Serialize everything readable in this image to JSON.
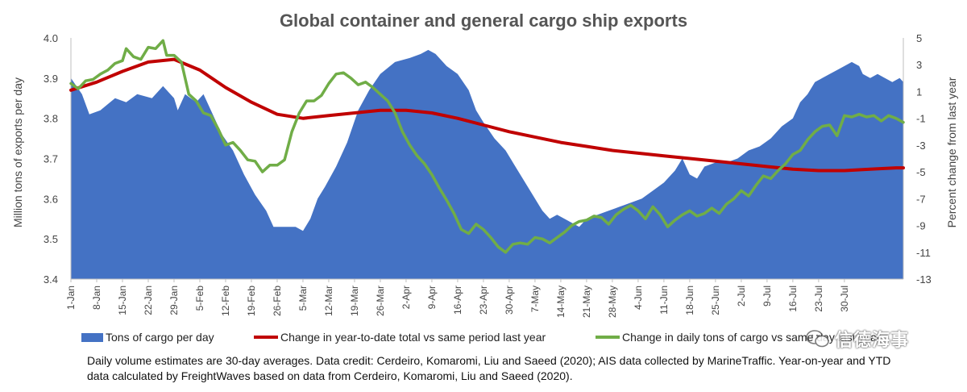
{
  "chart_data": {
    "type": "area",
    "title": "Global container and general cargo ship exports",
    "ylabel_left": "Million tons of exports per day",
    "ylabel_right": "Percent change from last year",
    "y_left_range": [
      3.4,
      4.0
    ],
    "y_left_ticks": [
      "3.4",
      "3.5",
      "3.6",
      "3.7",
      "3.8",
      "3.9",
      "4.0"
    ],
    "y_right_range": [
      -13,
      5
    ],
    "y_right_ticks": [
      "-13",
      "-11",
      "-9",
      "-7",
      "-5",
      "-3",
      "-1",
      "1",
      "3",
      "5"
    ],
    "x_tick_labels": [
      "1-Jan",
      "8-Jan",
      "15-Jan",
      "22-Jan",
      "29-Jan",
      "5-Feb",
      "12-Feb",
      "19-Feb",
      "26-Feb",
      "5-Mar",
      "12-Mar",
      "19-Mar",
      "26-Mar",
      "2-Apr",
      "9-Apr",
      "16-Apr",
      "23-Apr",
      "30-Apr",
      "7-May",
      "14-May",
      "21-May",
      "28-May",
      "4-Jun",
      "11-Jun",
      "18-Jun",
      "25-Jun",
      "2-Jul",
      "9-Jul",
      "16-Jul",
      "23-Jul",
      "30-Jul"
    ],
    "series": [
      {
        "name": "Tons of cargo per day",
        "axis": "left",
        "color": "#4472C4",
        "points": [
          [
            0,
            3.9
          ],
          [
            3,
            3.86
          ],
          [
            5,
            3.81
          ],
          [
            8,
            3.82
          ],
          [
            12,
            3.85
          ],
          [
            15,
            3.84
          ],
          [
            18,
            3.86
          ],
          [
            22,
            3.85
          ],
          [
            25,
            3.88
          ],
          [
            28,
            3.85
          ],
          [
            29,
            3.82
          ],
          [
            31,
            3.86
          ],
          [
            34,
            3.84
          ],
          [
            36,
            3.86
          ],
          [
            38,
            3.82
          ],
          [
            41,
            3.76
          ],
          [
            44,
            3.72
          ],
          [
            47,
            3.66
          ],
          [
            50,
            3.61
          ],
          [
            53,
            3.57
          ],
          [
            55,
            3.53
          ],
          [
            57,
            3.53
          ],
          [
            59,
            3.53
          ],
          [
            61,
            3.53
          ],
          [
            63,
            3.52
          ],
          [
            65,
            3.55
          ],
          [
            67,
            3.6
          ],
          [
            69,
            3.63
          ],
          [
            72,
            3.68
          ],
          [
            75,
            3.74
          ],
          [
            78,
            3.82
          ],
          [
            81,
            3.87
          ],
          [
            84,
            3.91
          ],
          [
            88,
            3.94
          ],
          [
            92,
            3.95
          ],
          [
            95,
            3.96
          ],
          [
            97,
            3.97
          ],
          [
            99,
            3.96
          ],
          [
            102,
            3.93
          ],
          [
            105,
            3.91
          ],
          [
            108,
            3.87
          ],
          [
            110,
            3.82
          ],
          [
            112,
            3.79
          ],
          [
            115,
            3.75
          ],
          [
            118,
            3.72
          ],
          [
            120,
            3.69
          ],
          [
            122,
            3.66
          ],
          [
            124,
            3.63
          ],
          [
            126,
            3.6
          ],
          [
            128,
            3.57
          ],
          [
            130,
            3.55
          ],
          [
            132,
            3.56
          ],
          [
            134,
            3.55
          ],
          [
            136,
            3.54
          ],
          [
            138,
            3.53
          ],
          [
            140,
            3.55
          ],
          [
            143,
            3.56
          ],
          [
            146,
            3.57
          ],
          [
            149,
            3.58
          ],
          [
            152,
            3.59
          ],
          [
            155,
            3.6
          ],
          [
            158,
            3.62
          ],
          [
            161,
            3.64
          ],
          [
            164,
            3.67
          ],
          [
            166,
            3.7
          ],
          [
            168,
            3.66
          ],
          [
            170,
            3.65
          ],
          [
            172,
            3.68
          ],
          [
            175,
            3.69
          ],
          [
            178,
            3.69
          ],
          [
            181,
            3.7
          ],
          [
            184,
            3.72
          ],
          [
            187,
            3.73
          ],
          [
            190,
            3.75
          ],
          [
            193,
            3.78
          ],
          [
            196,
            3.8
          ],
          [
            198,
            3.84
          ],
          [
            200,
            3.86
          ],
          [
            202,
            3.89
          ],
          [
            204,
            3.9
          ],
          [
            206,
            3.91
          ],
          [
            208,
            3.92
          ],
          [
            210,
            3.93
          ],
          [
            212,
            3.94
          ],
          [
            214,
            3.93
          ],
          [
            215,
            3.91
          ],
          [
            217,
            3.9
          ],
          [
            219,
            3.91
          ],
          [
            221,
            3.9
          ],
          [
            223,
            3.89
          ],
          [
            225,
            3.9
          ],
          [
            226,
            3.89
          ]
        ]
      },
      {
        "name": "Change in year-to-date total vs same period last year",
        "axis": "right",
        "color": "#C00000",
        "points": [
          [
            0,
            1.1
          ],
          [
            7,
            1.7
          ],
          [
            14,
            2.5
          ],
          [
            21,
            3.2
          ],
          [
            28,
            3.4
          ],
          [
            35,
            2.6
          ],
          [
            42,
            1.3
          ],
          [
            49,
            0.2
          ],
          [
            56,
            -0.7
          ],
          [
            63,
            -1.0
          ],
          [
            70,
            -0.8
          ],
          [
            77,
            -0.6
          ],
          [
            84,
            -0.4
          ],
          [
            91,
            -0.4
          ],
          [
            98,
            -0.6
          ],
          [
            105,
            -1.0
          ],
          [
            112,
            -1.5
          ],
          [
            119,
            -2.0
          ],
          [
            126,
            -2.4
          ],
          [
            133,
            -2.8
          ],
          [
            140,
            -3.1
          ],
          [
            147,
            -3.4
          ],
          [
            154,
            -3.6
          ],
          [
            161,
            -3.8
          ],
          [
            168,
            -4.0
          ],
          [
            175,
            -4.2
          ],
          [
            182,
            -4.4
          ],
          [
            189,
            -4.6
          ],
          [
            196,
            -4.8
          ],
          [
            203,
            -4.9
          ],
          [
            210,
            -4.9
          ],
          [
            217,
            -4.8
          ],
          [
            224,
            -4.7
          ],
          [
            226,
            -4.7
          ]
        ]
      },
      {
        "name": "Change in daily tons of cargo vs same day last year",
        "axis": "right",
        "color": "#70AD47",
        "points": [
          [
            0,
            1.6
          ],
          [
            2,
            1.2
          ],
          [
            4,
            1.8
          ],
          [
            6,
            1.9
          ],
          [
            8,
            2.3
          ],
          [
            10,
            2.6
          ],
          [
            12,
            3.1
          ],
          [
            14,
            3.3
          ],
          [
            15,
            4.2
          ],
          [
            17,
            3.6
          ],
          [
            19,
            3.4
          ],
          [
            21,
            4.3
          ],
          [
            23,
            4.2
          ],
          [
            25,
            4.8
          ],
          [
            26,
            3.7
          ],
          [
            28,
            3.7
          ],
          [
            30,
            3.2
          ],
          [
            32,
            0.8
          ],
          [
            34,
            0.3
          ],
          [
            36,
            -0.6
          ],
          [
            38,
            -0.8
          ],
          [
            40,
            -1.8
          ],
          [
            42,
            -3.0
          ],
          [
            44,
            -2.8
          ],
          [
            46,
            -3.4
          ],
          [
            48,
            -4.1
          ],
          [
            50,
            -4.2
          ],
          [
            52,
            -5.0
          ],
          [
            54,
            -4.5
          ],
          [
            56,
            -4.5
          ],
          [
            58,
            -4.1
          ],
          [
            60,
            -2.0
          ],
          [
            62,
            -0.6
          ],
          [
            64,
            0.3
          ],
          [
            66,
            0.3
          ],
          [
            68,
            0.7
          ],
          [
            70,
            1.6
          ],
          [
            72,
            2.3
          ],
          [
            74,
            2.4
          ],
          [
            76,
            2.0
          ],
          [
            78,
            1.5
          ],
          [
            80,
            1.7
          ],
          [
            82,
            1.3
          ],
          [
            84,
            0.8
          ],
          [
            86,
            0.3
          ],
          [
            88,
            -0.6
          ],
          [
            90,
            -2.0
          ],
          [
            92,
            -3.0
          ],
          [
            94,
            -3.8
          ],
          [
            96,
            -4.4
          ],
          [
            98,
            -5.2
          ],
          [
            100,
            -6.2
          ],
          [
            102,
            -7.1
          ],
          [
            104,
            -8.1
          ],
          [
            106,
            -9.3
          ],
          [
            108,
            -9.6
          ],
          [
            110,
            -8.9
          ],
          [
            112,
            -9.3
          ],
          [
            114,
            -9.9
          ],
          [
            116,
            -10.6
          ],
          [
            118,
            -11.0
          ],
          [
            120,
            -10.4
          ],
          [
            122,
            -10.3
          ],
          [
            124,
            -10.4
          ],
          [
            126,
            -9.9
          ],
          [
            128,
            -10.0
          ],
          [
            130,
            -10.3
          ],
          [
            132,
            -9.9
          ],
          [
            134,
            -9.5
          ],
          [
            136,
            -9.0
          ],
          [
            138,
            -8.7
          ],
          [
            140,
            -8.6
          ],
          [
            142,
            -8.3
          ],
          [
            144,
            -8.4
          ],
          [
            146,
            -8.9
          ],
          [
            148,
            -8.2
          ],
          [
            150,
            -7.8
          ],
          [
            152,
            -7.5
          ],
          [
            154,
            -7.9
          ],
          [
            156,
            -8.5
          ],
          [
            158,
            -7.6
          ],
          [
            160,
            -8.2
          ],
          [
            162,
            -9.1
          ],
          [
            164,
            -8.6
          ],
          [
            166,
            -8.2
          ],
          [
            168,
            -7.9
          ],
          [
            170,
            -8.3
          ],
          [
            172,
            -8.1
          ],
          [
            174,
            -7.7
          ],
          [
            176,
            -8.1
          ],
          [
            178,
            -7.4
          ],
          [
            180,
            -7.0
          ],
          [
            182,
            -6.4
          ],
          [
            184,
            -6.8
          ],
          [
            186,
            -6.0
          ],
          [
            188,
            -5.3
          ],
          [
            190,
            -5.5
          ],
          [
            192,
            -4.9
          ],
          [
            194,
            -4.4
          ],
          [
            196,
            -3.7
          ],
          [
            198,
            -3.4
          ],
          [
            200,
            -2.6
          ],
          [
            202,
            -2.0
          ],
          [
            204,
            -1.6
          ],
          [
            206,
            -1.5
          ],
          [
            208,
            -2.3
          ],
          [
            210,
            -0.8
          ],
          [
            212,
            -0.9
          ],
          [
            214,
            -0.7
          ],
          [
            216,
            -0.9
          ],
          [
            218,
            -0.8
          ],
          [
            220,
            -1.2
          ],
          [
            222,
            -0.8
          ],
          [
            224,
            -1.0
          ],
          [
            226,
            -1.3
          ]
        ]
      }
    ],
    "legend_placement": "bottom",
    "grid": false
  },
  "caption": {
    "line1": "Daily volume estimates are 30-day averages. Data credit: Cerdeiro, Komaromi, Liu and Saeed (2020); AIS data collected by MarineTraffic. Year-on-year and YTD",
    "line2": "data calculated by FreightWaves based on data from Cerdeiro, Komaromi, Liu and Saeed (2020)."
  },
  "watermark": {
    "icon": "wechat-icon",
    "text": "信德海事"
  }
}
